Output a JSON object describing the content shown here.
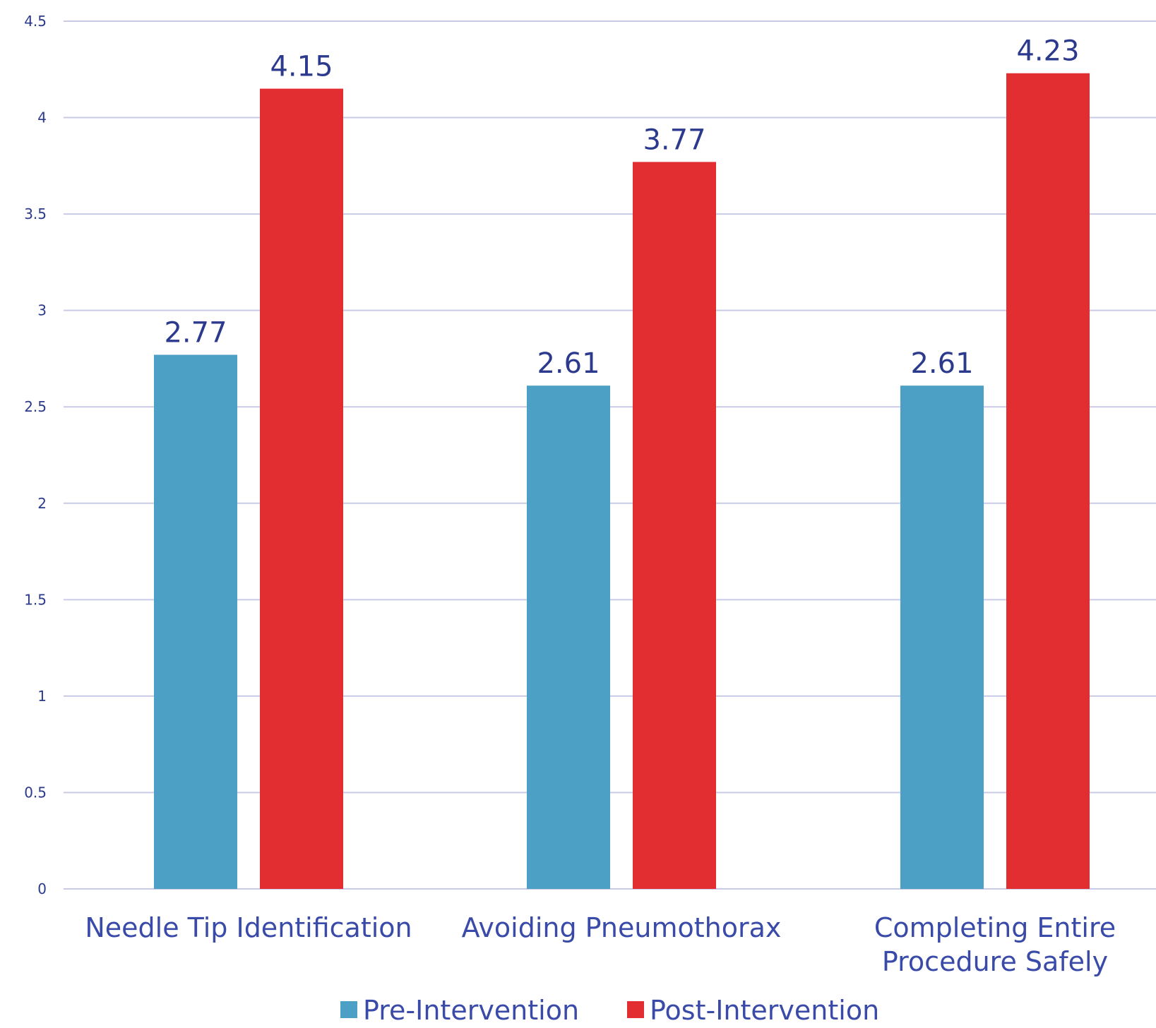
{
  "chart_data": {
    "type": "bar",
    "categories": [
      [
        "Needle Tip Identification"
      ],
      [
        "Avoiding Pneumothorax"
      ],
      [
        "Completing Entire",
        "Procedure Safely"
      ]
    ],
    "series": [
      {
        "name": "Pre-Intervention",
        "color": "#4da0c5",
        "values": [
          2.77,
          2.61,
          2.61
        ],
        "labels": [
          "2.77",
          "2.61",
          "2.61"
        ]
      },
      {
        "name": "Post-Intervention",
        "color": "#e32e31",
        "values": [
          4.15,
          3.77,
          4.23
        ],
        "labels": [
          "4.15",
          "3.77",
          "4.23"
        ]
      }
    ],
    "y_ticks": [
      "0",
      "0.5",
      "1",
      "1.5",
      "2",
      "2.5",
      "3",
      "3.5",
      "4",
      "4.5"
    ],
    "ylim": [
      0,
      4.5
    ],
    "grid": true,
    "legend": "bottom"
  }
}
